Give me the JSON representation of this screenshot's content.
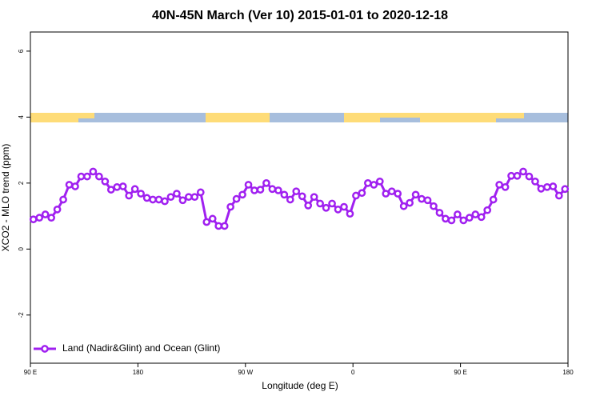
{
  "chart_data": {
    "type": "line",
    "title": "40N-45N March (Ver 10)   2015-01-01 to 2020-12-18",
    "x_label": "Longitude (deg E)",
    "y_label": "XCO2 - MLO trend (ppm)",
    "xlim": [
      90,
      540
    ],
    "xticks": [
      {
        "value": 90,
        "label": "90 E"
      },
      {
        "value": 180,
        "label": "180"
      },
      {
        "value": 270,
        "label": "90 W"
      },
      {
        "value": 360,
        "label": "0"
      },
      {
        "value": 450,
        "label": "90 E"
      },
      {
        "value": 540,
        "label": "180"
      }
    ],
    "ylim": [
      -3.46,
      6.58
    ],
    "yticks": [
      -2,
      0,
      2,
      4,
      6
    ],
    "grid": false,
    "legend": "bottomleft",
    "x": [
      92.5,
      97.5,
      102.5,
      107.5,
      112.5,
      117.5,
      122.5,
      127.5,
      132.5,
      137.5,
      142.5,
      147.5,
      152.5,
      157.5,
      162.5,
      167.5,
      172.5,
      177.5,
      182.5,
      187.5,
      192.5,
      197.5,
      202.5,
      207.5,
      212.5,
      217.5,
      222.5,
      227.5,
      232.5,
      237.5,
      242.5,
      247.5,
      252.5,
      257.5,
      262.5,
      267.5,
      272.5,
      277.5,
      282.5,
      287.5,
      292.5,
      297.5,
      302.5,
      307.5,
      312.5,
      317.5,
      322.5,
      327.5,
      332.5,
      337.5,
      342.5,
      347.5,
      352.5,
      357.5,
      362.5,
      367.5,
      372.5,
      377.5,
      382.5,
      387.5,
      392.5,
      397.5,
      402.5,
      407.5,
      412.5,
      417.5,
      422.5,
      427.5,
      432.5,
      437.5,
      442.5,
      447.5,
      452.5,
      457.5,
      462.5,
      467.5,
      472.5,
      477.5,
      482.5,
      487.5,
      492.5,
      497.5,
      502.5,
      507.5,
      512.5,
      517.5,
      522.5,
      527.5,
      532.5,
      537.5
    ],
    "series": [
      {
        "name": "Land (Nadir&Glint) and Ocean (Glint)",
        "color": "#a020f0",
        "values": [
          0.9,
          0.95,
          1.05,
          0.95,
          1.2,
          1.5,
          1.95,
          1.9,
          2.2,
          2.2,
          2.35,
          2.2,
          2.05,
          1.8,
          1.88,
          1.9,
          1.62,
          1.82,
          1.68,
          1.55,
          1.5,
          1.5,
          1.45,
          1.58,
          1.68,
          1.48,
          1.58,
          1.58,
          1.72,
          0.82,
          0.92,
          0.7,
          0.7,
          1.28,
          1.52,
          1.65,
          1.95,
          1.78,
          1.8,
          2.0,
          1.82,
          1.78,
          1.65,
          1.5,
          1.75,
          1.6,
          1.32,
          1.58,
          1.38,
          1.25,
          1.38,
          1.2,
          1.28,
          1.07,
          1.62,
          1.7,
          2.0,
          1.95,
          2.05,
          1.68,
          1.75,
          1.68,
          1.3,
          1.4,
          1.65,
          1.52,
          1.48,
          1.3,
          1.1,
          0.92,
          0.87,
          1.05,
          0.87,
          0.95,
          1.05,
          0.97,
          1.18,
          1.5,
          1.95,
          1.88,
          2.22,
          2.22,
          2.35,
          2.2,
          2.05,
          1.83,
          1.88,
          1.9,
          1.62,
          1.82
        ]
      }
    ]
  }
}
